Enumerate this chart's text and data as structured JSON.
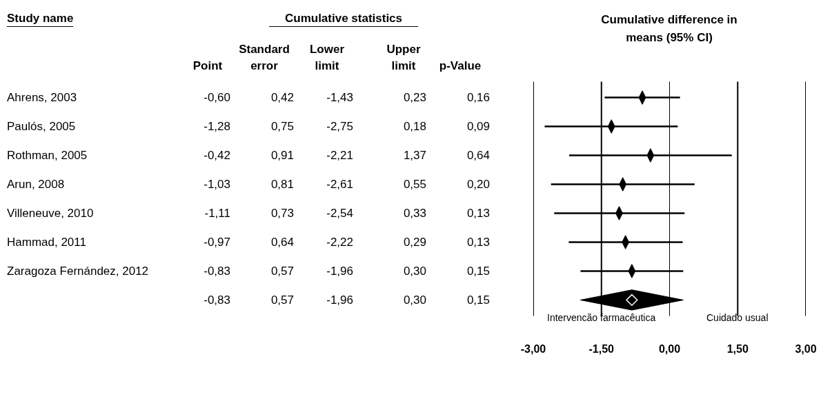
{
  "chart_data": [
    {
      "type": "other",
      "ylabel": "Study name",
      "title": "Cumulative statistics",
      "categories": [
        "Point",
        "Standard error",
        "Lower limit",
        "Upper limit",
        "p-Value"
      ],
      "y_categories": [
        "Ahrens, 2003",
        "Paulós, 2005",
        "Rothman, 2005",
        "Arun, 2008",
        "Villeneuve, 2010",
        "Hammad, 2011",
        "Zaragoza Fernández, 2012",
        null
      ],
      "cell_labels": [
        [
          "-0,60",
          "0,42",
          "-1,43",
          "0,23",
          "0,16"
        ],
        [
          "-1,28",
          "0,75",
          "-2,75",
          "0,18",
          "0,09"
        ],
        [
          "-0,42",
          "0,91",
          "-2,21",
          "1,37",
          "0,64"
        ],
        [
          "-1,03",
          "0,81",
          "-2,61",
          "0,55",
          "0,20"
        ],
        [
          "-1,11",
          "0,73",
          "-2,54",
          "0,33",
          "0,13"
        ],
        [
          "-0,97",
          "0,64",
          "-2,22",
          "0,29",
          "0,13"
        ],
        [
          "-0,83",
          "0,57",
          "-1,96",
          "0,30",
          "0,15"
        ],
        [
          "-0,83",
          "0,57",
          "-1,96",
          "0,30",
          "0,15"
        ]
      ]
    },
    {
      "type": "scatter",
      "orientation": "horizontal",
      "title": "Cumulative difference in means (95% CI)",
      "categories": [
        null,
        null,
        null,
        null,
        null,
        null,
        null,
        null
      ],
      "series": [
        {
          "color": "#000000",
          "values": [
            -0.6,
            -1.28,
            -0.42,
            -1.03,
            -1.11,
            -0.97,
            -0.83,
            null
          ],
          "errors": [
            [
              -1.43,
              0.23
            ],
            [
              -2.75,
              0.18
            ],
            [
              -2.21,
              1.37
            ],
            [
              -2.61,
              0.55
            ],
            [
              -2.54,
              0.33
            ],
            [
              -2.22,
              0.29
            ],
            [
              -1.96,
              0.3
            ],
            null
          ]
        },
        {
          "color": "#000000",
          "marker": "diamond",
          "values": [
            null,
            null,
            null,
            null,
            null,
            null,
            null,
            -0.83
          ],
          "errors": [
            null,
            null,
            null,
            null,
            null,
            null,
            null,
            [
              -1.96,
              0.3
            ]
          ]
        }
      ],
      "xlim": [
        -3,
        3
      ],
      "xticks": [
        {
          "value": -3,
          "label": "-3,00"
        },
        {
          "value": -1.5,
          "label": "-1,50"
        },
        {
          "value": 0,
          "label": "0,00"
        },
        {
          "value": 1.5,
          "label": "1,50"
        },
        {
          "value": 3,
          "label": "3,00"
        }
      ],
      "grid": "x",
      "tick_labels": "x",
      "annotations": [
        "Intervencão farmacêutica",
        "Cuidado usual"
      ]
    }
  ]
}
